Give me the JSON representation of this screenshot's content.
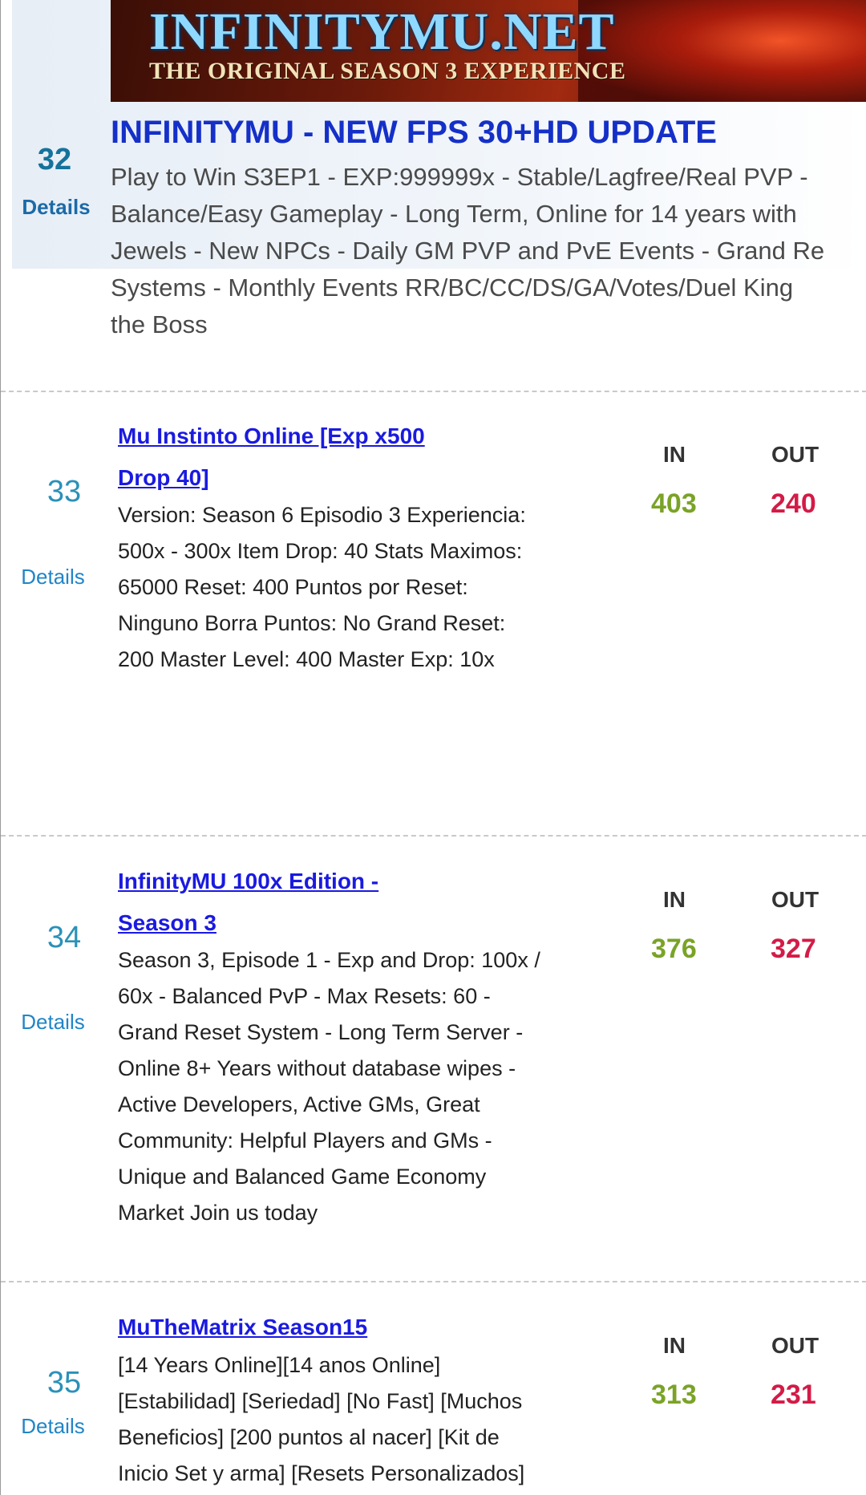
{
  "featured": {
    "banner_title": "INFINITYMU.NET",
    "banner_subtitle": "THE ORIGINAL SEASON 3 EXPERIENCE",
    "rank": "32",
    "details_label": "Details",
    "title": "INFINITYMU - NEW FPS 30+HD UPDATE",
    "desc_lines": [
      "Play to Win S3EP1 - EXP:999999x - Stable/Lagfree/Real PVP -",
      "Balance/Easy Gameplay - Long Term, Online for 14 years with",
      "Jewels - New NPCs - Daily GM PVP and PvE Events - Grand Re",
      "Systems - Monthly Events RR/BC/CC/DS/GA/Votes/Duel King",
      "the Boss"
    ]
  },
  "labels": {
    "in": "IN",
    "out": "OUT",
    "details": "Details"
  },
  "servers": [
    {
      "rank": "33",
      "title_lines": [
        "Mu Instinto Online [Exp x500",
        "Drop 40]"
      ],
      "desc_lines": [
        "Version: Season 6 Episodio 3 Experiencia:",
        "500x - 300x Item Drop: 40 Stats Maximos:",
        "65000 Reset: 400 Puntos por Reset:",
        "Ninguno Borra Puntos: No Grand Reset:",
        "200 Master Level: 400 Master Exp: 10x"
      ],
      "in": "403",
      "out": "240"
    },
    {
      "rank": "34",
      "title_lines": [
        "InfinityMU 100x Edition -",
        "Season 3"
      ],
      "desc_lines": [
        "Season 3, Episode 1 - Exp and Drop: 100x /",
        "60x - Balanced PvP - Max Resets: 60 -",
        "Grand Reset System - Long Term Server -",
        "Online 8+ Years without database wipes -",
        "Active Developers, Active GMs, Great",
        "Community: Helpful Players and GMs -",
        "Unique and Balanced Game Economy",
        "Market Join us today"
      ],
      "in": "376",
      "out": "327"
    },
    {
      "rank": "35",
      "title_lines": [
        "MuTheMatrix Season15"
      ],
      "desc_lines": [
        "[14 Years Online][14 anos Online]",
        "[Estabilidad] [Seriedad] [No Fast] [Muchos",
        "Beneficios] [200 puntos al nacer] [Kit de",
        "Inicio Set y arma] [Resets Personalizados]"
      ],
      "in": "313",
      "out": "231"
    }
  ],
  "colors": {
    "in": "#7aa327",
    "out": "#d31b47",
    "title_link": "#1a1ae0",
    "featured_title": "#1530c8"
  }
}
